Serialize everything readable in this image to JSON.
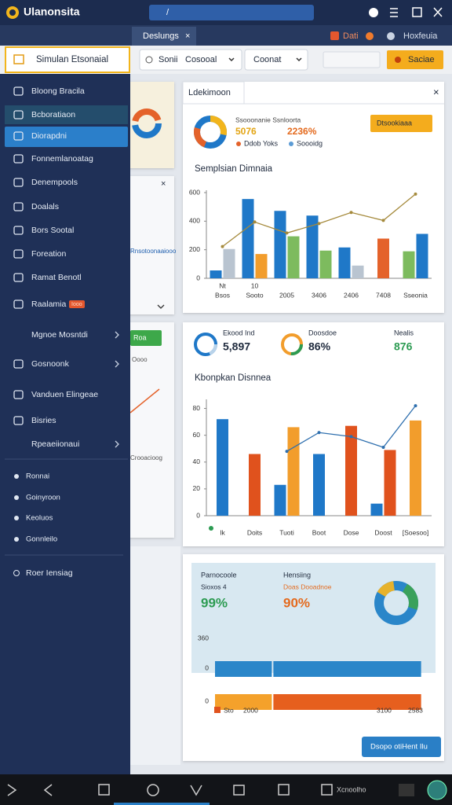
{
  "app": {
    "title": "Ulanonsita",
    "search": "/",
    "tab": "Deslungs",
    "status": [
      "Dati",
      "Hoxfeuia"
    ]
  },
  "toolbar": {
    "title": "Simulan Etsonaial",
    "filters": [
      "Sonii",
      "Cosooal",
      "Coonat"
    ],
    "button": "Saciae"
  },
  "sidebar": {
    "items": [
      "Bloong Bracila",
      "Bcboratiaon",
      "Diorapdni",
      "Fonnemlanoatag",
      "Denempools",
      "Doalals",
      "Bors Sootal",
      "Foreation",
      "Ramat Benotl",
      "Raalamia",
      "Mgnoe Mosntdi",
      "Gosnoonk",
      "Vanduen Elingeae",
      "Bisries",
      "Rpeaeiionaui"
    ],
    "badge": "Iooo",
    "section": [
      "Ronnai",
      "Goinyroon",
      "Keoluos",
      "Gonnleilo"
    ],
    "footer": "Roer Iensiag"
  },
  "background": {
    "link": "Rnsotoonaaiooo",
    "button": "Roa",
    "labels": [
      "Crooacioog",
      "Oooo"
    ]
  },
  "panel1": {
    "tab": "Ldekimoon",
    "heading": "Ssooonanie Ssnloorta",
    "stats": [
      "5076",
      "2236%"
    ],
    "legend": [
      "Ddob Yoks",
      "Soooidg"
    ],
    "button": "Dtsookiaaa",
    "chart": {
      "type": "bar",
      "title": "Semplsian Dimnaia",
      "categories_top": [
        "Nt",
        "10"
      ],
      "categories": [
        "Bsos",
        "Sooto",
        "2005",
        "3406",
        "2406",
        "7408",
        "Sseonia"
      ],
      "series": [
        {
          "values": [
            55,
            555,
            472,
            439,
            216,
            278,
            189
          ],
          "colors": [
            "#1f78c8",
            "#1f78c8",
            "#1f78c8",
            "#1f78c8",
            "#1f78c8",
            "#e4622a",
            "#7dbb5e"
          ]
        },
        {
          "values": [
            205,
            170,
            294,
            194,
            89,
            null,
            311
          ],
          "colors": [
            "#b9c4d0",
            "#f29d2c",
            "#7dbb5e",
            "#7dbb5e",
            "#b9c4d0",
            null,
            "#1f78c8"
          ]
        }
      ],
      "line": {
        "color": "#a58a3c",
        "values": [
          222,
          394,
          317,
          383,
          461,
          405,
          590
        ]
      },
      "ylim": [
        0,
        600
      ],
      "yticks": [
        0,
        200,
        400,
        600
      ]
    }
  },
  "panel2": {
    "stats": [
      {
        "label": "Ekood Ind",
        "value": "5,897"
      },
      {
        "label": "Doosdoe",
        "value": "86%"
      },
      {
        "label": "Nealis",
        "value": "876"
      }
    ],
    "chart": {
      "type": "bar",
      "title": "Kbonpkan Disnnea",
      "categories": [
        "Ik",
        "Doits",
        "Tuoti",
        "Boot",
        "Dose",
        "Doost",
        "[Soesoo]"
      ],
      "series": [
        {
          "values": [
            72,
            46,
            23,
            46,
            67,
            9,
            71
          ],
          "colors": [
            "#1f78c8",
            "#e0521d",
            "#1f78c8",
            "#1f78c8",
            "#e0521d",
            "#1f78c8",
            "#f29d2c"
          ]
        },
        {
          "values": [
            null,
            null,
            66,
            null,
            null,
            49,
            null
          ],
          "colors": [
            null,
            null,
            "#f29d2c",
            null,
            null,
            "#e0521d",
            null
          ]
        }
      ],
      "line": {
        "color": "#2e6fae",
        "values": [
          null,
          null,
          48,
          62,
          59,
          51,
          82
        ]
      },
      "ylim": [
        0,
        85
      ],
      "yticks": [
        0,
        20,
        40,
        60,
        80
      ]
    }
  },
  "panel3": {
    "stats": [
      {
        "label": "Parnocoole",
        "sub": "Sioxos 4",
        "value": "99%"
      },
      {
        "label": "Hensiing",
        "sub": "Doas Dooadnoe",
        "value": "90%"
      }
    ],
    "chart": {
      "type": "hbar",
      "top_label": "360",
      "rows": [
        "0",
        "0"
      ],
      "series": [
        {
          "values": [
            27,
            71
          ],
          "colors": [
            "#2a86c9",
            "#2a86c9"
          ]
        },
        {
          "values": [
            27,
            71
          ],
          "colors": [
            "#f4a12b",
            "#e65f1e"
          ]
        }
      ],
      "xlim": [
        0,
        100
      ],
      "legend": [
        "Sto",
        "2000",
        "3100",
        "2583"
      ]
    },
    "button": "Dsopo otiHent Ilu"
  },
  "navbar": {
    "text": "Xcnoolho"
  }
}
